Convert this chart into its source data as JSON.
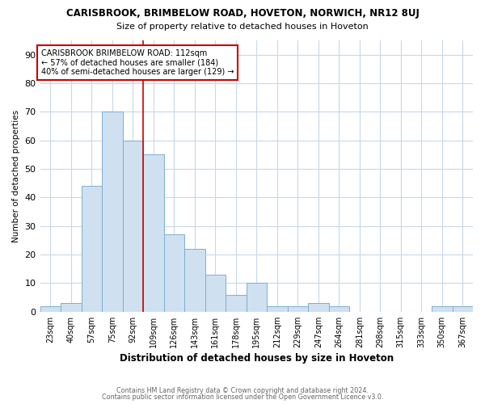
{
  "title": "CARISBROOK, BRIMBELOW ROAD, HOVETON, NORWICH, NR12 8UJ",
  "subtitle": "Size of property relative to detached houses in Hoveton",
  "xlabel": "Distribution of detached houses by size in Hoveton",
  "ylabel": "Number of detached properties",
  "categories": [
    "23sqm",
    "40sqm",
    "57sqm",
    "75sqm",
    "92sqm",
    "109sqm",
    "126sqm",
    "143sqm",
    "161sqm",
    "178sqm",
    "195sqm",
    "212sqm",
    "229sqm",
    "247sqm",
    "264sqm",
    "281sqm",
    "298sqm",
    "315sqm",
    "333sqm",
    "350sqm",
    "367sqm"
  ],
  "values": [
    2,
    3,
    44,
    70,
    60,
    55,
    27,
    22,
    13,
    6,
    10,
    2,
    2,
    3,
    2,
    0,
    0,
    0,
    0,
    2,
    2
  ],
  "bar_color": "#cfe0f0",
  "bar_edge_color": "#7ab0d4",
  "property_line_index": 4,
  "annotation_line1": "CARISBROOK BRIMBELOW ROAD: 112sqm",
  "annotation_line2": "← 57% of detached houses are smaller (184)",
  "annotation_line3": "40% of semi-detached houses are larger (129) →",
  "ylim": [
    0,
    95
  ],
  "yticks": [
    0,
    10,
    20,
    30,
    40,
    50,
    60,
    70,
    80,
    90
  ],
  "footer1": "Contains HM Land Registry data © Crown copyright and database right 2024.",
  "footer2": "Contains public sector information licensed under the Open Government Licence v3.0.",
  "background_color": "#ffffff",
  "grid_color": "#c8d8e8",
  "line_color": "#cc0000",
  "title_fontsize": 8.5,
  "subtitle_fontsize": 8.0
}
